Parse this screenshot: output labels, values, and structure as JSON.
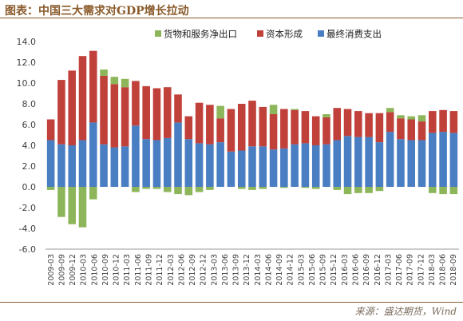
{
  "header": {
    "title": "图表：中国三大需求对GDP增长拉动"
  },
  "footer": {
    "source": "来源：盛达期货，Wind"
  },
  "colors": {
    "net_exports": "#8db65a",
    "capital": "#c0403a",
    "consumption": "#4a7ec2",
    "frame": "#8a5a2a"
  },
  "chart_data": {
    "type": "bar",
    "stacked": true,
    "title": "图表：中国三大需求对GDP增长拉动",
    "xlabel": "",
    "ylabel": "",
    "ylim": [
      -6,
      14
    ],
    "yticks": [
      "14.0",
      "12.0",
      "10.0",
      "8.0",
      "6.0",
      "4.0",
      "2.0",
      "0.0",
      "-2.0",
      "-4.0",
      "-6.0"
    ],
    "grid": false,
    "legend": "top",
    "categories": [
      "2009-03",
      "2009-06",
      "2009-09",
      "2009-12",
      "2010-03",
      "2010-06",
      "2010-09",
      "2010-12",
      "2011-03",
      "2011-06",
      "2011-09",
      "2011-12",
      "2012-03",
      "2012-06",
      "2012-09",
      "2012-12",
      "2013-03",
      "2013-06",
      "2013-09",
      "2013-12",
      "2014-03",
      "2014-06",
      "2014-09",
      "2014-12",
      "2015-03",
      "2015-06",
      "2015-09",
      "2015-12",
      "2016-03",
      "2016-06",
      "2016-09",
      "2016-12",
      "2017-03",
      "2017-06",
      "2017-09",
      "2017-12",
      "2018-03",
      "2018-06",
      "2018-09"
    ],
    "tick_labels": [
      "2009-03",
      "2009-09",
      "2009-12",
      "2010-03",
      "2010-06",
      "2010-09",
      "2010-12",
      "2011-03",
      "2011-06",
      "2011-09",
      "2011-12",
      "2012-03",
      "2012-06",
      "2012-09",
      "2012-12",
      "2013-03",
      "2013-06",
      "2013-09",
      "2013-12",
      "2014-03",
      "2014-06",
      "2014-09",
      "2014-12",
      "2015-03",
      "2015-06",
      "2015-09",
      "2015-12",
      "2016-03",
      "2016-06",
      "2016-09",
      "2016-12",
      "2017-03",
      "2017-06",
      "2017-09",
      "2017-12",
      "2018-03",
      "2018-06",
      "2018-09"
    ],
    "series": [
      {
        "name": "货物和服务净出口",
        "key": "net_exports",
        "values": [
          -0.3,
          -2.9,
          -3.6,
          -3.9,
          -1.2,
          0.6,
          0.7,
          0.8,
          -0.5,
          -0.2,
          -0.2,
          -0.5,
          -0.7,
          -0.8,
          -0.5,
          -0.3,
          1.2,
          0.0,
          -0.2,
          -0.3,
          -0.2,
          0.9,
          -0.1,
          0.1,
          -0.1,
          -0.2,
          0.3,
          -0.3,
          -0.7,
          -0.6,
          -0.6,
          -0.4,
          0.4,
          0.3,
          0.3,
          0.6,
          -0.6,
          -0.7,
          -0.7
        ]
      },
      {
        "name": "资本形成",
        "key": "capital",
        "values": [
          2.0,
          6.2,
          7.2,
          8.1,
          6.9,
          6.6,
          6.1,
          5.7,
          4.3,
          5.1,
          5.0,
          4.9,
          2.7,
          2.2,
          3.9,
          3.8,
          2.3,
          4.1,
          4.5,
          4.4,
          3.8,
          3.4,
          3.8,
          3.3,
          3.1,
          2.8,
          2.6,
          3.1,
          2.6,
          2.5,
          2.3,
          2.8,
          1.9,
          2.0,
          2.0,
          1.8,
          2.1,
          2.1,
          2.1
        ]
      },
      {
        "name": "最终消费支出",
        "key": "consumption",
        "values": [
          4.5,
          4.1,
          4.0,
          4.5,
          6.2,
          4.1,
          3.8,
          3.9,
          5.9,
          4.6,
          4.5,
          4.7,
          6.2,
          4.6,
          4.2,
          4.1,
          4.3,
          3.4,
          3.5,
          3.9,
          3.9,
          3.6,
          3.7,
          4.1,
          4.2,
          4.0,
          4.1,
          4.5,
          4.9,
          4.8,
          4.8,
          4.3,
          5.3,
          4.6,
          4.5,
          4.5,
          5.2,
          5.3,
          5.2
        ]
      }
    ]
  }
}
